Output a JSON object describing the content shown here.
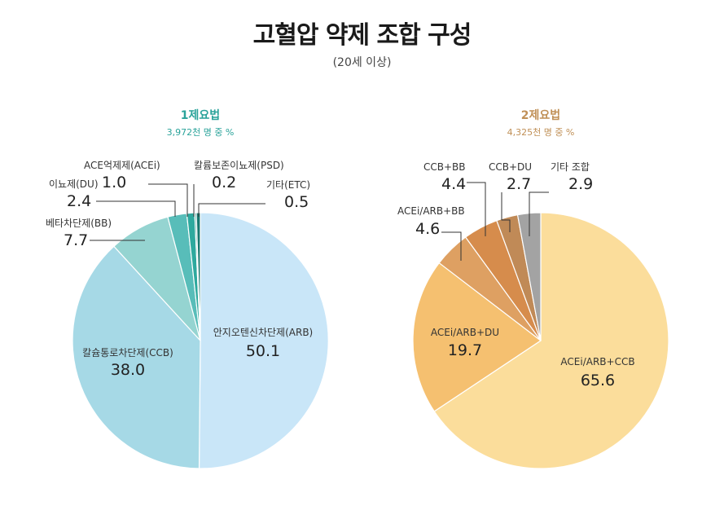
{
  "title": "고혈압 약제 조합 구성",
  "subtitle": "(20세 이상)",
  "chart_data": [
    {
      "type": "pie",
      "title": "1제요법",
      "subtitle": "3,972천 명 중 %",
      "title_color": "#2aa39a",
      "slices": [
        {
          "label": "안지오텐신차단제(ARB)",
          "value": 50.1,
          "color": "#c9e6f8"
        },
        {
          "label": "칼슘통로차단제(CCB)",
          "value": 38.0,
          "color": "#a6d9e6"
        },
        {
          "label": "베타차단제(BB)",
          "value": 7.7,
          "color": "#95d4d1"
        },
        {
          "label": "이뇨제(DU)",
          "value": 2.4,
          "color": "#58bdb9"
        },
        {
          "label": "ACE억제제(ACEi)",
          "value": 1.0,
          "color": "#2ea99e"
        },
        {
          "label": "칼륨보존이뇨제(PSD)",
          "value": 0.2,
          "color": "#1f8f86"
        },
        {
          "label": "기타(ETC)",
          "value": 0.5,
          "color": "#17776f"
        }
      ]
    },
    {
      "type": "pie",
      "title": "2제요법",
      "subtitle": "4,325천 명 중 %",
      "title_color": "#c09057",
      "slices": [
        {
          "label": "ACEi/ARB+CCB",
          "value": 65.6,
          "color": "#fbdd9b"
        },
        {
          "label": "ACEi/ARB+DU",
          "value": 19.7,
          "color": "#f5c070"
        },
        {
          "label": "ACEi/ARB+BB",
          "value": 4.6,
          "color": "#dea062"
        },
        {
          "label": "CCB+BB",
          "value": 4.4,
          "color": "#d68c4c"
        },
        {
          "label": "CCB+DU",
          "value": 2.7,
          "color": "#c08a57"
        },
        {
          "label": "기타 조합",
          "value": 2.9,
          "color": "#a3a3a3"
        }
      ]
    }
  ]
}
